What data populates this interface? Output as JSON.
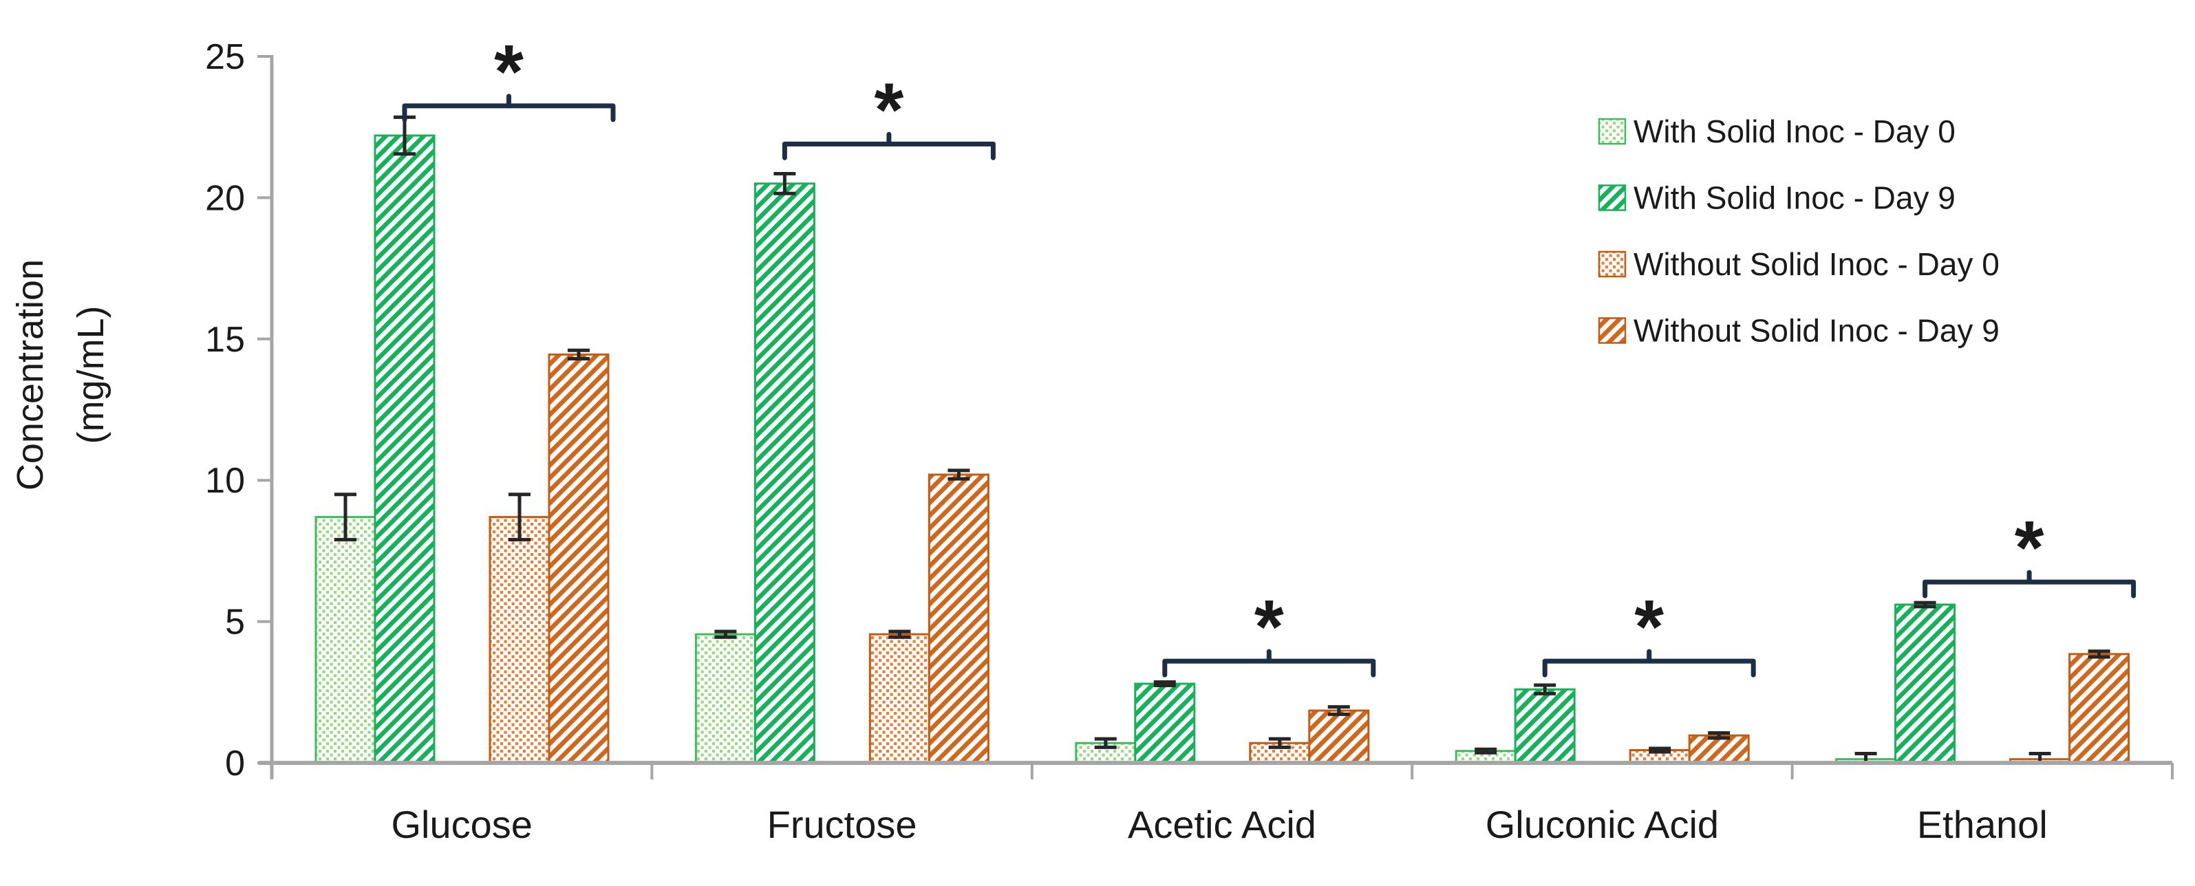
{
  "chart_data": {
    "type": "bar",
    "title": "",
    "ylabel": "Concentration (mg/mL)",
    "ylabel_lines": [
      "Concentration",
      "(mg/mL)"
    ],
    "categories": [
      "Glucose",
      "Fructose",
      "Acetic Acid",
      "Gluconic Acid",
      "Ethanol"
    ],
    "ylim": [
      0,
      25
    ],
    "y_ticks": [
      0,
      5,
      10,
      15,
      20,
      25
    ],
    "y_tick_labels": [
      "0",
      "5",
      "10",
      "15",
      "20",
      "25"
    ],
    "grid": false,
    "legend_position": "upper-right",
    "units": "mg/mL",
    "series": [
      {
        "name": "With Solid Inoc - Day 0",
        "pattern": "dots",
        "fill_color": "#9ad884",
        "border_color": "#3cbd5e",
        "values": [
          8.7,
          4.55,
          0.7,
          0.42,
          0.13
        ],
        "errors": [
          0.8,
          0.1,
          0.15,
          0.06,
          0.2
        ]
      },
      {
        "name": "With Solid Inoc - Day 9",
        "pattern": "stripes",
        "fill_color": "#13b25b",
        "border_color": "#19b156",
        "values": [
          22.2,
          20.5,
          2.8,
          2.6,
          5.6
        ],
        "errors": [
          0.65,
          0.35,
          0.06,
          0.15,
          0.07
        ]
      },
      {
        "name": "Without Solid Inoc - Day 0",
        "pattern": "dots",
        "fill_color": "#ed7d31",
        "border_color": "#c55a11",
        "values": [
          8.7,
          4.55,
          0.7,
          0.45,
          0.13
        ],
        "errors": [
          0.8,
          0.1,
          0.15,
          0.06,
          0.2
        ]
      },
      {
        "name": "Without Solid Inoc - Day 9",
        "pattern": "stripes",
        "fill_color": "#d0671c",
        "border_color": "#c55a11",
        "values": [
          14.45,
          10.2,
          1.85,
          0.97,
          3.85
        ],
        "errors": [
          0.15,
          0.15,
          0.13,
          0.09,
          0.1
        ]
      }
    ],
    "significance_brackets": [
      {
        "category": "Glucose",
        "between_series": [
          "With Solid Inoc - Day 9",
          "Without Solid Inoc - Day 9"
        ],
        "label": "*",
        "y_value": 23.25
      },
      {
        "category": "Fructose",
        "between_series": [
          "With Solid Inoc - Day 9",
          "Without Solid Inoc - Day 9"
        ],
        "label": "*",
        "y_value": 21.9
      },
      {
        "category": "Acetic Acid",
        "between_series": [
          "With Solid Inoc - Day 9",
          "Without Solid Inoc - Day 9"
        ],
        "label": "*",
        "y_value": 3.6
      },
      {
        "category": "Gluconic Acid",
        "between_series": [
          "With Solid Inoc - Day 9",
          "Without Solid Inoc - Day 9"
        ],
        "label": "*",
        "y_value": 3.6
      },
      {
        "category": "Ethanol",
        "between_series": [
          "With Solid Inoc - Day 9",
          "Without Solid Inoc - Day 9"
        ],
        "label": "*",
        "y_value": 6.4
      }
    ]
  },
  "colors": {
    "bracket": "#1d2f47",
    "error_bar": "#262626",
    "axis": "#a6a6a6",
    "text": "#1a1a1a",
    "background": "#ffffff"
  }
}
